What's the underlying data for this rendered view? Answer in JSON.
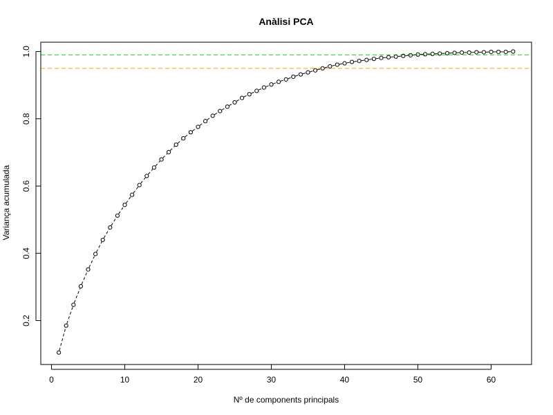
{
  "chart_data": {
    "type": "line",
    "title": "Anàlisi PCA",
    "xlabel": "Nº de components principals",
    "ylabel": "Variança acumulada",
    "xlim": [
      0,
      63
    ],
    "ylim": [
      0.1,
      1.0
    ],
    "xticks": [
      0,
      10,
      20,
      30,
      40,
      50,
      60
    ],
    "yticks": [
      0.2,
      0.4,
      0.6,
      0.8,
      1.0
    ],
    "xtick_labels": [
      "0",
      "10",
      "20",
      "30",
      "40",
      "50",
      "60"
    ],
    "ytick_labels": [
      "0.2",
      "0.4",
      "0.6",
      "0.8",
      "1.0"
    ],
    "grid": false,
    "series": [
      {
        "x": [
          1,
          2,
          3,
          4,
          5,
          6,
          7,
          8,
          9,
          10,
          11,
          12,
          13,
          14,
          15,
          16,
          17,
          18,
          19,
          20,
          21,
          22,
          23,
          24,
          25,
          26,
          27,
          28,
          29,
          30,
          31,
          32,
          33,
          34,
          35,
          36,
          37,
          38,
          39,
          40,
          41,
          42,
          43,
          44,
          45,
          46,
          47,
          48,
          49,
          50,
          51,
          52,
          53,
          54,
          55,
          56,
          57,
          58,
          59,
          60,
          61,
          62,
          63
        ],
        "values": [
          0.105,
          0.185,
          0.247,
          0.302,
          0.352,
          0.398,
          0.44,
          0.477,
          0.512,
          0.544,
          0.574,
          0.603,
          0.63,
          0.655,
          0.679,
          0.701,
          0.723,
          0.742,
          0.76,
          0.776,
          0.793,
          0.809,
          0.823,
          0.836,
          0.849,
          0.862,
          0.873,
          0.883,
          0.893,
          0.902,
          0.91,
          0.917,
          0.925,
          0.932,
          0.938,
          0.944,
          0.95,
          0.956,
          0.961,
          0.965,
          0.969,
          0.972,
          0.975,
          0.978,
          0.981,
          0.983,
          0.985,
          0.987,
          0.989,
          0.991,
          0.992,
          0.993,
          0.994,
          0.995,
          0.996,
          0.997,
          0.997,
          0.998,
          0.998,
          0.999,
          0.999,
          0.999,
          1.0
        ],
        "color": "#000000",
        "line_style": "dashed",
        "marker": "open-circle"
      }
    ],
    "reference_lines": [
      {
        "y": 0.99,
        "color": "#22cc22",
        "style": "dashed"
      },
      {
        "y": 0.95,
        "color": "#ffa500",
        "style": "dashed"
      }
    ]
  }
}
